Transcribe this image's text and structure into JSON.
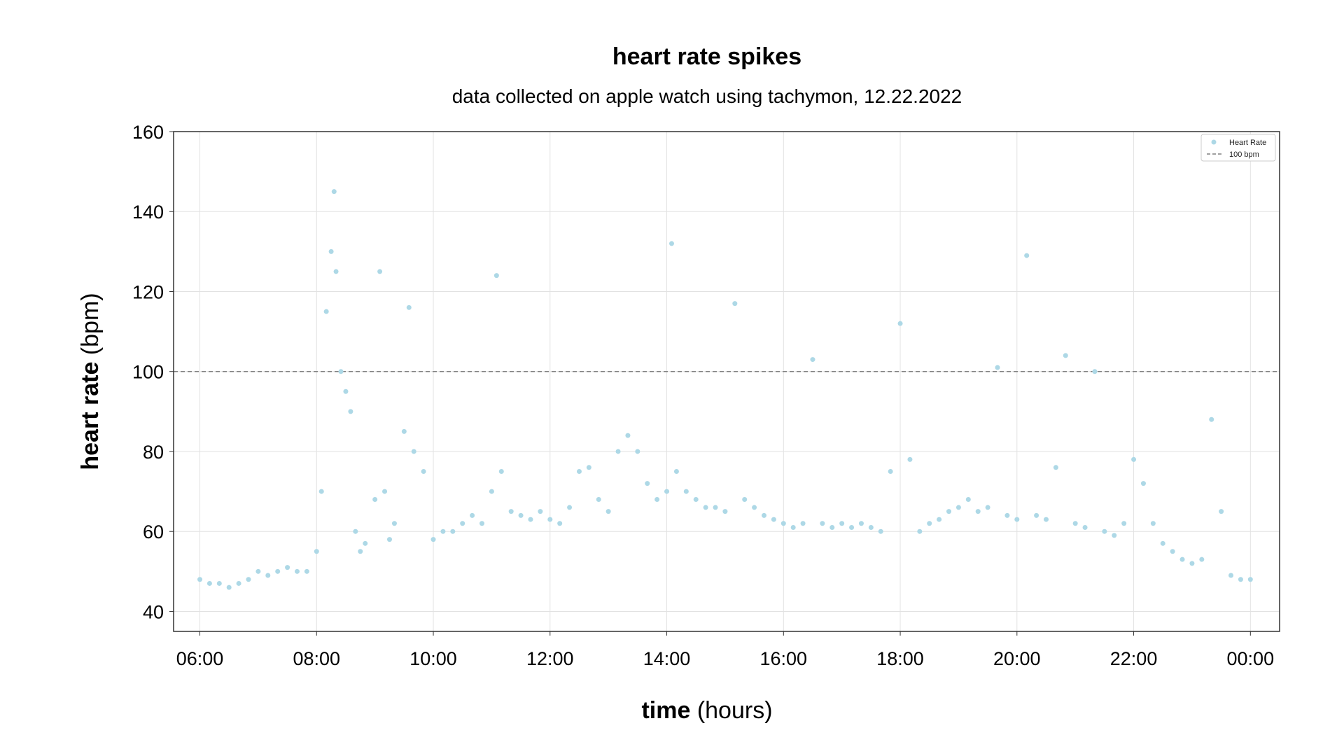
{
  "chart_data": {
    "type": "scatter",
    "title": "heart rate spikes",
    "subtitle": "data collected on apple watch using tachymon, 12.22.2022",
    "xlabel": {
      "bold": "time",
      "normal": "(hours)"
    },
    "ylabel": {
      "bold": "heart rate",
      "normal": "(bpm)"
    },
    "xlim": [
      "05:33",
      "00:30"
    ],
    "ylim": [
      35,
      160
    ],
    "x_ticks": [
      "06:00",
      "08:00",
      "10:00",
      "12:00",
      "14:00",
      "16:00",
      "18:00",
      "20:00",
      "22:00",
      "00:00"
    ],
    "y_ticks": [
      40,
      60,
      80,
      100,
      120,
      140,
      160
    ],
    "grid": true,
    "legend_position": "top-right",
    "reference_line": {
      "y": 100,
      "label": "100 bpm",
      "color": "#808080",
      "style": "dashed"
    },
    "series": [
      {
        "name": "Heart Rate",
        "color": "#add8e6",
        "points": [
          [
            "06:00",
            48
          ],
          [
            "06:10",
            47
          ],
          [
            "06:20",
            47
          ],
          [
            "06:30",
            46
          ],
          [
            "06:40",
            47
          ],
          [
            "06:50",
            48
          ],
          [
            "07:00",
            50
          ],
          [
            "07:10",
            49
          ],
          [
            "07:20",
            50
          ],
          [
            "07:30",
            51
          ],
          [
            "07:40",
            50
          ],
          [
            "07:50",
            50
          ],
          [
            "08:00",
            55
          ],
          [
            "08:05",
            70
          ],
          [
            "08:10",
            115
          ],
          [
            "08:15",
            130
          ],
          [
            "08:18",
            145
          ],
          [
            "08:20",
            125
          ],
          [
            "08:25",
            100
          ],
          [
            "08:30",
            95
          ],
          [
            "08:35",
            90
          ],
          [
            "08:40",
            60
          ],
          [
            "08:45",
            55
          ],
          [
            "08:50",
            57
          ],
          [
            "09:00",
            68
          ],
          [
            "09:05",
            125
          ],
          [
            "09:10",
            70
          ],
          [
            "09:15",
            58
          ],
          [
            "09:20",
            62
          ],
          [
            "09:30",
            85
          ],
          [
            "09:35",
            116
          ],
          [
            "09:40",
            80
          ],
          [
            "09:50",
            75
          ],
          [
            "10:00",
            58
          ],
          [
            "10:10",
            60
          ],
          [
            "10:20",
            60
          ],
          [
            "10:30",
            62
          ],
          [
            "10:40",
            64
          ],
          [
            "10:50",
            62
          ],
          [
            "11:00",
            70
          ],
          [
            "11:05",
            124
          ],
          [
            "11:10",
            75
          ],
          [
            "11:20",
            65
          ],
          [
            "11:30",
            64
          ],
          [
            "11:40",
            63
          ],
          [
            "11:50",
            65
          ],
          [
            "12:00",
            63
          ],
          [
            "12:10",
            62
          ],
          [
            "12:20",
            66
          ],
          [
            "12:30",
            75
          ],
          [
            "12:40",
            76
          ],
          [
            "12:50",
            68
          ],
          [
            "13:00",
            65
          ],
          [
            "13:10",
            80
          ],
          [
            "13:20",
            84
          ],
          [
            "13:30",
            80
          ],
          [
            "13:40",
            72
          ],
          [
            "13:50",
            68
          ],
          [
            "14:00",
            70
          ],
          [
            "14:05",
            132
          ],
          [
            "14:10",
            75
          ],
          [
            "14:20",
            70
          ],
          [
            "14:30",
            68
          ],
          [
            "14:40",
            66
          ],
          [
            "14:50",
            66
          ],
          [
            "15:00",
            65
          ],
          [
            "15:10",
            117
          ],
          [
            "15:20",
            68
          ],
          [
            "15:30",
            66
          ],
          [
            "15:40",
            64
          ],
          [
            "15:50",
            63
          ],
          [
            "16:00",
            62
          ],
          [
            "16:10",
            61
          ],
          [
            "16:20",
            62
          ],
          [
            "16:30",
            103
          ],
          [
            "16:40",
            62
          ],
          [
            "16:50",
            61
          ],
          [
            "17:00",
            62
          ],
          [
            "17:10",
            61
          ],
          [
            "17:20",
            62
          ],
          [
            "17:30",
            61
          ],
          [
            "17:40",
            60
          ],
          [
            "17:50",
            75
          ],
          [
            "18:00",
            112
          ],
          [
            "18:10",
            78
          ],
          [
            "18:20",
            60
          ],
          [
            "18:30",
            62
          ],
          [
            "18:40",
            63
          ],
          [
            "18:50",
            65
          ],
          [
            "19:00",
            66
          ],
          [
            "19:10",
            68
          ],
          [
            "19:20",
            65
          ],
          [
            "19:30",
            66
          ],
          [
            "19:40",
            101
          ],
          [
            "19:50",
            64
          ],
          [
            "20:00",
            63
          ],
          [
            "20:10",
            129
          ],
          [
            "20:20",
            64
          ],
          [
            "20:30",
            63
          ],
          [
            "20:40",
            76
          ],
          [
            "20:50",
            104
          ],
          [
            "21:00",
            62
          ],
          [
            "21:10",
            61
          ],
          [
            "21:20",
            100
          ],
          [
            "21:30",
            60
          ],
          [
            "21:40",
            59
          ],
          [
            "21:50",
            62
          ],
          [
            "22:00",
            78
          ],
          [
            "22:10",
            72
          ],
          [
            "22:20",
            62
          ],
          [
            "22:30",
            57
          ],
          [
            "22:40",
            55
          ],
          [
            "22:50",
            53
          ],
          [
            "23:00",
            52
          ],
          [
            "23:10",
            53
          ],
          [
            "23:20",
            88
          ],
          [
            "23:30",
            65
          ],
          [
            "23:40",
            49
          ],
          [
            "23:50",
            48
          ],
          [
            "00:00",
            48
          ]
        ]
      }
    ]
  }
}
